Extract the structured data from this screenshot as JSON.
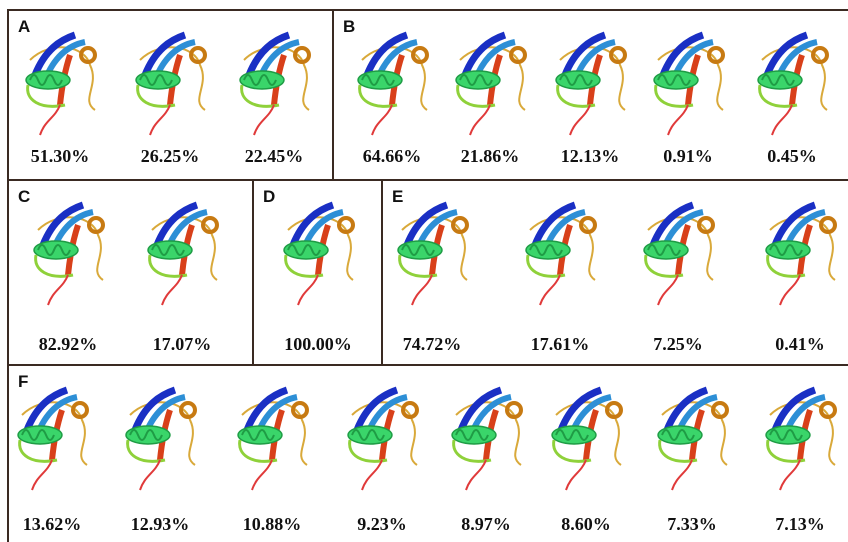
{
  "panels": [
    {
      "label": "A",
      "items": [
        "51.30%",
        "26.25%",
        "22.45%"
      ]
    },
    {
      "label": "B",
      "items": [
        "64.66%",
        "21.86%",
        "12.13%",
        "0.91%",
        "0.45%"
      ]
    },
    {
      "label": "C",
      "items": [
        "82.92%",
        "17.07%"
      ]
    },
    {
      "label": "D",
      "items": [
        "100.00%"
      ]
    },
    {
      "label": "E",
      "items": [
        "74.72%",
        "17.61%",
        "7.25%",
        "0.41%"
      ]
    },
    {
      "label": "F",
      "items": [
        "13.62%",
        "12.93%",
        "10.88%",
        "9.23%",
        "8.97%",
        "8.60%",
        "7.33%",
        "7.13%"
      ]
    }
  ]
}
